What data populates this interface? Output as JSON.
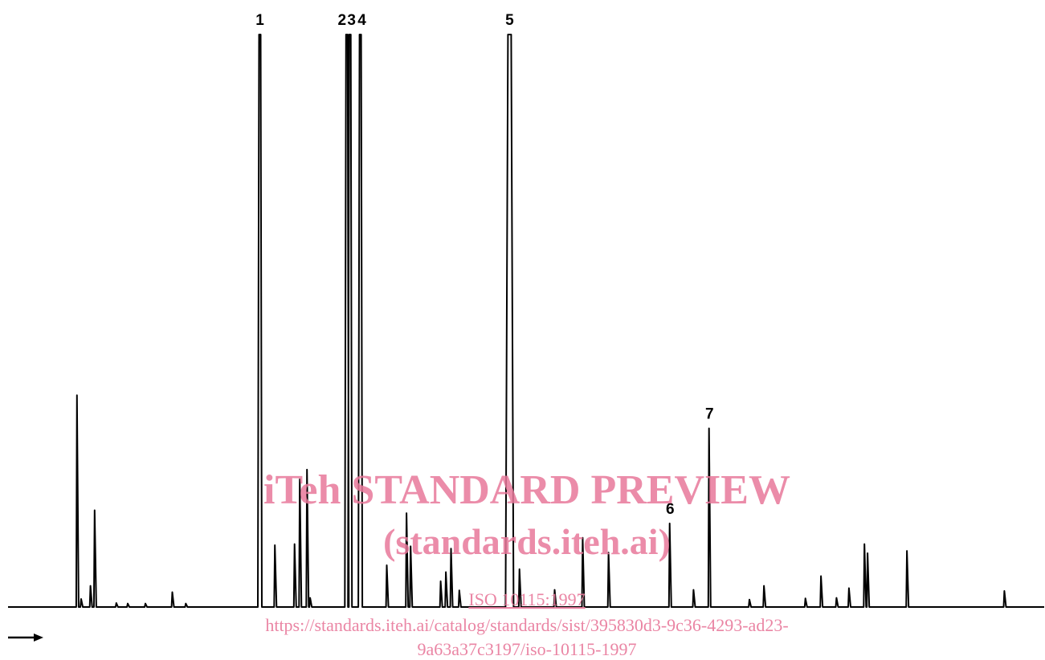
{
  "chart_data": {
    "type": "line",
    "title": "",
    "xlabel": "",
    "ylabel": "",
    "xlim": [
      0,
      100
    ],
    "ylim": [
      0,
      100
    ],
    "grid": false,
    "axes_visible": false,
    "direction_arrow": "right",
    "series": [
      {
        "values": [
          {
            "x": 6.7,
            "y": 37.0
          },
          {
            "x": 7.1,
            "y": 1.4
          },
          {
            "x": 8.0,
            "y": 3.7
          },
          {
            "x": 8.4,
            "y": 16.9
          },
          {
            "x": 10.5,
            "y": 0.7
          },
          {
            "x": 11.6,
            "y": 0.6
          },
          {
            "x": 13.3,
            "y": 0.6
          },
          {
            "x": 15.9,
            "y": 2.6
          },
          {
            "x": 17.2,
            "y": 0.6
          },
          {
            "x": 24.3,
            "y": 100,
            "label": "1"
          },
          {
            "x": 25.8,
            "y": 10.8
          },
          {
            "x": 27.7,
            "y": 11.0
          },
          {
            "x": 28.2,
            "y": 22.3
          },
          {
            "x": 28.9,
            "y": 24.0
          },
          {
            "x": 29.2,
            "y": 1.6
          },
          {
            "x": 32.7,
            "y": 100,
            "label": "2"
          },
          {
            "x": 33.0,
            "y": 100,
            "label": "3"
          },
          {
            "x": 34.0,
            "y": 100,
            "label": "4"
          },
          {
            "x": 36.6,
            "y": 7.3
          },
          {
            "x": 38.5,
            "y": 16.4
          },
          {
            "x": 38.9,
            "y": 10.6
          },
          {
            "x": 41.8,
            "y": 4.5
          },
          {
            "x": 42.3,
            "y": 6.1
          },
          {
            "x": 42.8,
            "y": 10.2
          },
          {
            "x": 43.6,
            "y": 2.9
          },
          {
            "x": 48.4,
            "y": 100,
            "label": "5"
          },
          {
            "x": 49.4,
            "y": 6.6
          },
          {
            "x": 52.8,
            "y": 3.0
          },
          {
            "x": 55.5,
            "y": 12.1
          },
          {
            "x": 58.0,
            "y": 9.5
          },
          {
            "x": 63.9,
            "y": 14.6,
            "label": "6"
          },
          {
            "x": 66.2,
            "y": 3.0
          },
          {
            "x": 67.7,
            "y": 31.2,
            "label": "7"
          },
          {
            "x": 71.6,
            "y": 1.3
          },
          {
            "x": 73.0,
            "y": 3.7
          },
          {
            "x": 77.0,
            "y": 1.5
          },
          {
            "x": 78.5,
            "y": 5.4
          },
          {
            "x": 80.0,
            "y": 1.6
          },
          {
            "x": 81.2,
            "y": 3.3
          },
          {
            "x": 82.7,
            "y": 11.0
          },
          {
            "x": 83.0,
            "y": 9.4
          },
          {
            "x": 86.8,
            "y": 9.8
          },
          {
            "x": 96.2,
            "y": 2.8
          }
        ]
      }
    ]
  },
  "watermark": {
    "title": "iTeh STANDARD PREVIEW",
    "subtitle": "(standards.iteh.ai)",
    "doc_id": "ISO 10115:1997",
    "url_line1": "https://standards.iteh.ai/catalog/standards/sist/395830d3-9c36-4293-ad23-",
    "url_line2": "9a63a37c3197/iso-10115-1997",
    "color": "#e8789a"
  }
}
